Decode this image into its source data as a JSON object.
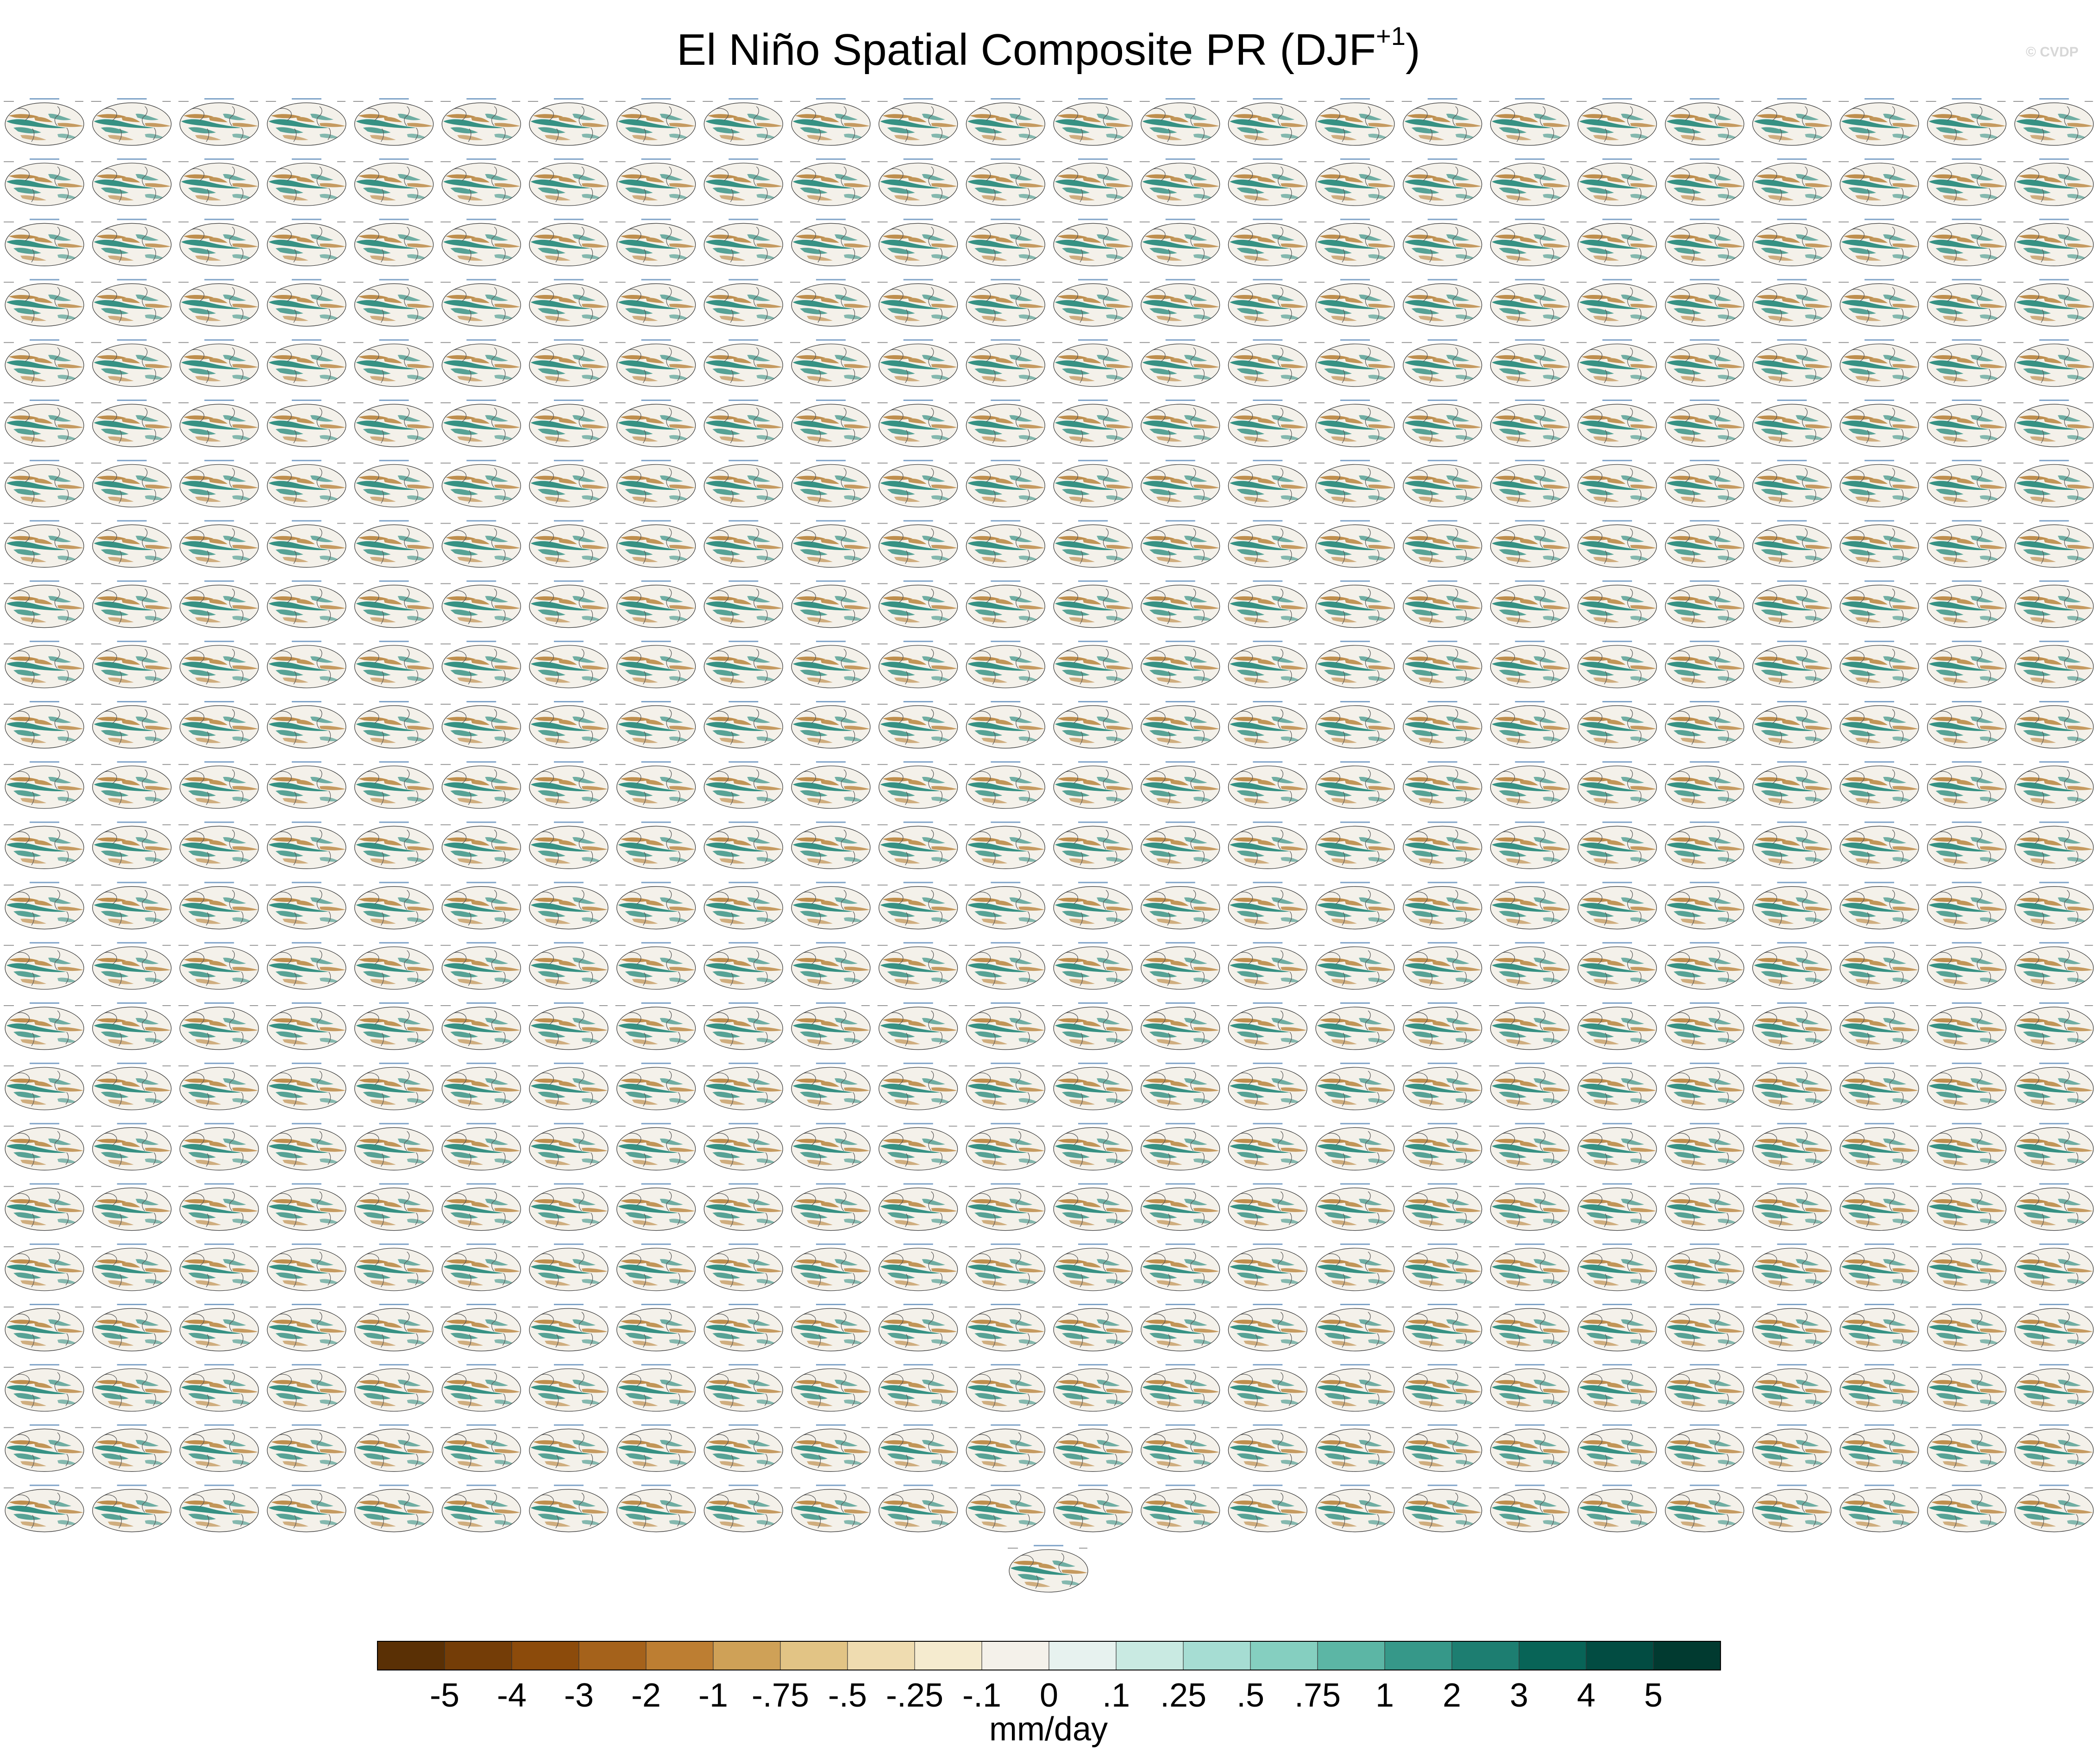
{
  "title": {
    "text": "El Niño Spatial Composite PR (DJF",
    "superscript": "+1",
    "closing": ")"
  },
  "credit": "© CVDP",
  "grid": {
    "rows": 24,
    "columns": 24,
    "extra_panels_last_row": 1,
    "panel_type": "global precipitation composite map (elliptical projection)"
  },
  "chart_data": {
    "type": "heatmap",
    "title": "El Niño Spatial Composite PR (DJF+1)",
    "panel_count": 577,
    "colorbar": {
      "units": "mm/day",
      "tick_labels": [
        "-5",
        "-4",
        "-3",
        "-2",
        "-1",
        "-.75",
        "-.5",
        "-.25",
        "-.1",
        "0",
        ".1",
        ".25",
        ".5",
        ".75",
        "1",
        "2",
        "3",
        "4",
        "5"
      ],
      "levels": [
        -5,
        -4,
        -3,
        -2,
        -1,
        -0.75,
        -0.5,
        -0.25,
        -0.1,
        0,
        0.1,
        0.25,
        0.5,
        0.75,
        1,
        2,
        3,
        4,
        5
      ],
      "colors": [
        "#5a3005",
        "#743d07",
        "#8c4b0b",
        "#a5621b",
        "#bd7e32",
        "#cfa157",
        "#e2c485",
        "#efdcb0",
        "#f5ebcf",
        "#f4f1ea",
        "#e7f2ef",
        "#c9eae2",
        "#a6ddd3",
        "#85cfc0",
        "#5cb6a5",
        "#369889",
        "#1d7e71",
        "#086457",
        "#024c42",
        "#013a30"
      ]
    }
  },
  "colors": {
    "dry": "#b07525",
    "wet": "#148071",
    "neutral": "#f4f1ea",
    "coast": "#555555"
  }
}
